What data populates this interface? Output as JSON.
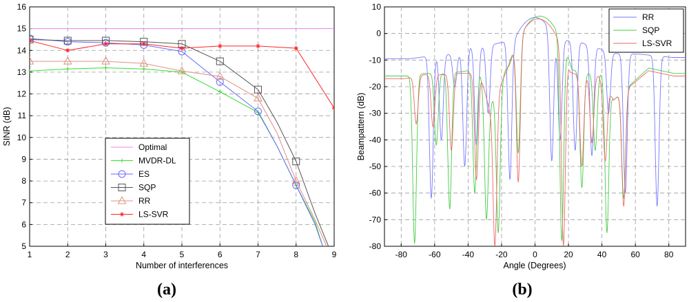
{
  "chart_data": [
    {
      "type": "line",
      "panel_label": "(a)",
      "xlabel": "Number of interferences",
      "ylabel": "SINR (dB)",
      "xlim": [
        1,
        9
      ],
      "ylim": [
        5,
        16
      ],
      "xticks": [
        1,
        2,
        3,
        4,
        5,
        6,
        7,
        8,
        9
      ],
      "yticks": [
        5,
        6,
        7,
        8,
        9,
        10,
        11,
        12,
        13,
        14,
        15,
        16
      ],
      "grid": true,
      "legend_position": "center-bottom",
      "series": [
        {
          "name": "Optimal",
          "color": "#ee82ee",
          "marker": "none",
          "x": [
            1,
            9
          ],
          "y": [
            15.0,
            15.0
          ]
        },
        {
          "name": "MVDR-DL",
          "color": "#33dd33",
          "marker": "plus",
          "x": [
            1,
            2,
            3,
            4,
            5,
            6,
            7,
            7.5,
            8,
            8.5,
            8.7
          ],
          "y": [
            13.05,
            13.15,
            13.2,
            13.15,
            13.0,
            12.1,
            11.15,
            9.6,
            7.8,
            6.1,
            5.0
          ]
        },
        {
          "name": "ES",
          "color": "#6666ff",
          "marker": "circle",
          "x": [
            1,
            2,
            3,
            4,
            5,
            6,
            7,
            7.5,
            8,
            8.5,
            8.7
          ],
          "y": [
            14.55,
            14.4,
            14.35,
            14.25,
            13.95,
            12.55,
            11.2,
            9.6,
            7.8,
            6.0,
            5.0
          ]
        },
        {
          "name": "SQP",
          "color": "#555555",
          "marker": "square",
          "x": [
            1,
            2,
            3,
            4,
            5,
            6,
            7,
            7.5,
            8,
            8.5,
            8.85
          ],
          "y": [
            14.5,
            14.45,
            14.45,
            14.4,
            14.3,
            13.5,
            12.2,
            10.7,
            8.9,
            6.5,
            5.0
          ]
        },
        {
          "name": "RR",
          "color": "#e09080",
          "marker": "triangle",
          "x": [
            1,
            2,
            3,
            4,
            5,
            6,
            7,
            7.5,
            8,
            8.5,
            8.8
          ],
          "y": [
            13.5,
            13.5,
            13.5,
            13.4,
            13.05,
            12.8,
            11.8,
            10.2,
            8.0,
            6.2,
            5.0
          ]
        },
        {
          "name": "LS-SVR",
          "color": "#ff2222",
          "marker": "asterisk",
          "x": [
            1,
            2,
            3,
            4,
            5,
            6,
            7,
            8,
            9
          ],
          "y": [
            14.45,
            14.0,
            14.3,
            14.3,
            14.1,
            14.2,
            14.2,
            14.1,
            11.35
          ]
        }
      ]
    },
    {
      "type": "line",
      "panel_label": "(b)",
      "xlabel": "Angle (Degrees)",
      "ylabel": "Beampattern (dB)",
      "xlim": [
        -90,
        90
      ],
      "ylim": [
        -80,
        10
      ],
      "xticks": [
        -80,
        -60,
        -40,
        -20,
        0,
        20,
        40,
        60,
        80
      ],
      "yticks": [
        -80,
        -70,
        -60,
        -50,
        -40,
        -30,
        -20,
        -10,
        0,
        10
      ],
      "grid": true,
      "legend_position": "top-right",
      "series": [
        {
          "name": "RR",
          "color": "#7777ff",
          "peak_angle": 0,
          "peak_db": 6,
          "nulls": [
            [
              -62,
              -62
            ],
            [
              -56,
              -40
            ],
            [
              -48,
              -20
            ],
            [
              -42,
              -50
            ],
            [
              -35,
              -42
            ],
            [
              -28,
              -30
            ],
            [
              -15,
              -55
            ],
            [
              10,
              -48
            ],
            [
              15,
              -40
            ],
            [
              24,
              -44
            ],
            [
              34,
              -46
            ],
            [
              44,
              -30
            ],
            [
              54,
              -60
            ],
            [
              73,
              -65
            ]
          ],
          "sidelobes": [
            [
              -75,
              -9.5
            ],
            [
              -55,
              -7.8
            ],
            [
              -46,
              -8
            ],
            [
              -39,
              -5
            ],
            [
              -31,
              -5
            ],
            [
              -21,
              -3.5
            ],
            [
              -11,
              -2
            ],
            [
              16,
              -2.5
            ],
            [
              26,
              -3
            ],
            [
              30,
              -4
            ],
            [
              40,
              -6
            ],
            [
              47,
              -7.5
            ],
            [
              63,
              -7.8
            ],
            [
              82,
              -9
            ]
          ]
        },
        {
          "name": "SQP",
          "color": "#44cc44",
          "peak_angle": 3,
          "peak_db": 6.5,
          "nulls": [
            [
              -72,
              -79
            ],
            [
              -59,
              -42
            ],
            [
              -51,
              -66
            ],
            [
              -36,
              -60
            ],
            [
              -29,
              -70
            ],
            [
              -22,
              -75
            ],
            [
              -10,
              -45
            ],
            [
              16,
              -78
            ],
            [
              28,
              -58
            ],
            [
              36,
              -44
            ],
            [
              43,
              -75
            ],
            [
              53,
              -62
            ]
          ],
          "sidelobes": [
            [
              -77,
              -16
            ],
            [
              -66,
              -15
            ],
            [
              -55,
              -15
            ],
            [
              -46,
              -14.5
            ],
            [
              -40,
              -14
            ],
            [
              -33,
              -15
            ],
            [
              -27,
              -27
            ],
            [
              -17,
              -13
            ],
            [
              -5,
              -7
            ],
            [
              24,
              -14
            ],
            [
              31,
              -15
            ],
            [
              40,
              -15
            ],
            [
              47,
              -25
            ],
            [
              68,
              -13
            ],
            [
              83,
              -15
            ]
          ]
        },
        {
          "name": "LS-SVR",
          "color": "#ee6666",
          "peak_angle": 2,
          "peak_db": 5.5,
          "nulls": [
            [
              -71,
              -34
            ],
            [
              -61,
              -35
            ],
            [
              -50,
              -44
            ],
            [
              -35,
              -55
            ],
            [
              -24,
              -80
            ],
            [
              -10,
              -56
            ],
            [
              17,
              -80
            ],
            [
              28,
              -50
            ],
            [
              34,
              -41
            ],
            [
              42,
              -48
            ],
            [
              53,
              -65
            ]
          ],
          "sidelobes": [
            [
              -78,
              -17
            ],
            [
              -66,
              -15.5
            ],
            [
              -55,
              -15.5
            ],
            [
              -46,
              -15
            ],
            [
              -40,
              -15
            ],
            [
              -33,
              -15
            ],
            [
              -27,
              -29
            ],
            [
              -17,
              -14
            ],
            [
              -6,
              -8
            ],
            [
              23,
              -15
            ],
            [
              30,
              -16
            ],
            [
              38,
              -16
            ],
            [
              47,
              -25
            ],
            [
              68,
              -14
            ],
            [
              83,
              -16
            ]
          ]
        }
      ]
    }
  ]
}
